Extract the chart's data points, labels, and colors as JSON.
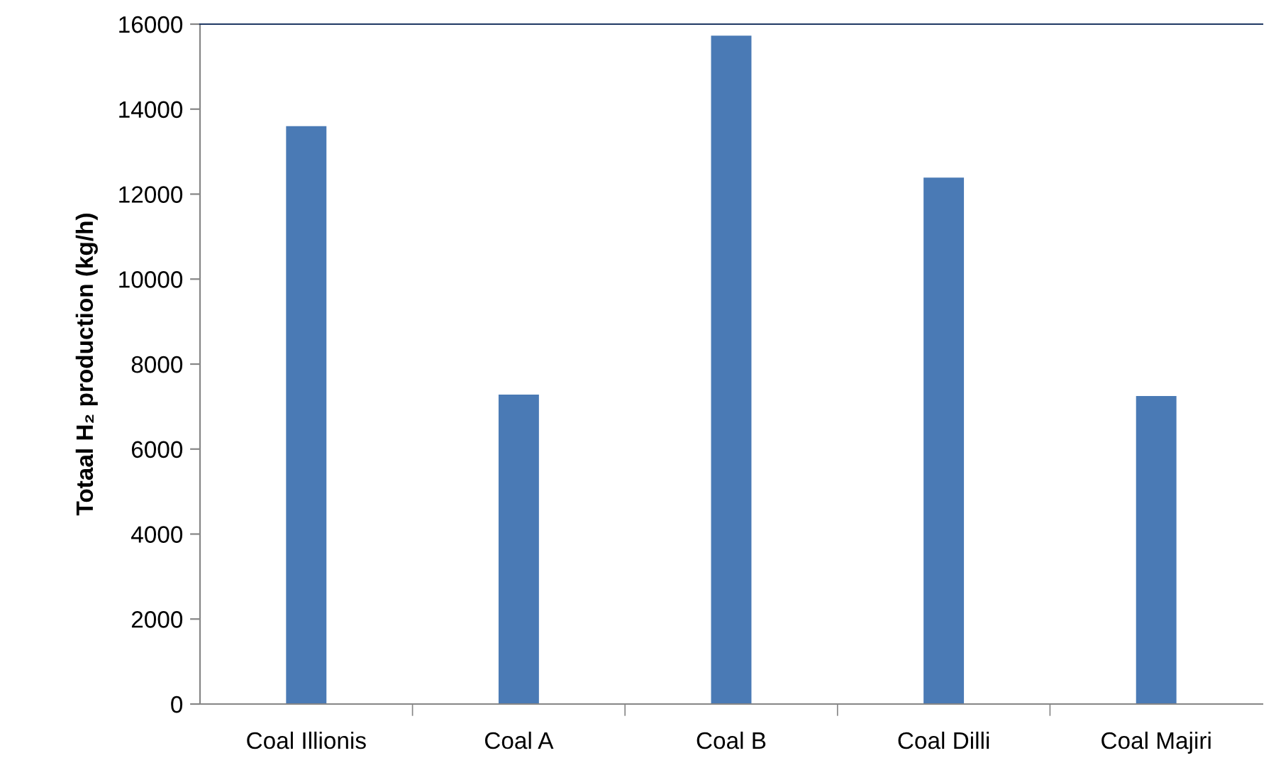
{
  "chart_data": {
    "type": "bar",
    "ylabel": "Totaal H₂ production (kg/h)",
    "categories": [
      "Coal Illionis",
      "Coal A",
      "Coal B",
      "Coal Dilli",
      "Coal Majiri"
    ],
    "values": [
      13600,
      7280,
      15730,
      12390,
      7250
    ],
    "color": "#4a7ab5",
    "ylim": [
      0,
      16000
    ],
    "yticks": [
      0,
      2000,
      4000,
      6000,
      8000,
      10000,
      12000,
      14000,
      16000
    ],
    "grid": false,
    "legend": false
  }
}
